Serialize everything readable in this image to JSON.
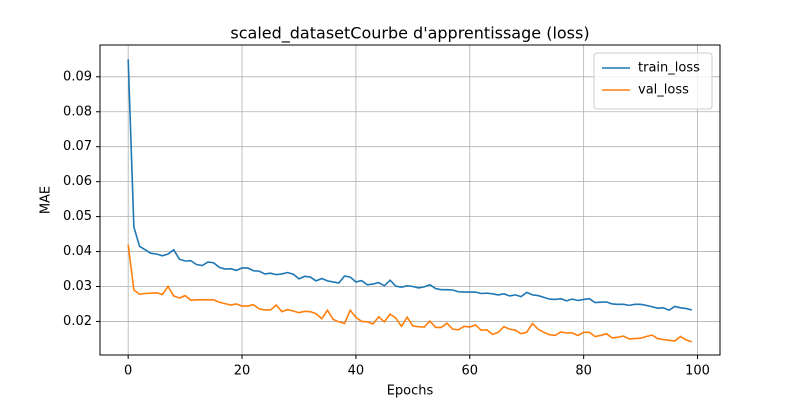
{
  "chart_data": {
    "type": "line",
    "title": "scaled_datasetCourbe d'apprentissage (loss)",
    "x_label": "Epochs",
    "y_label": "MAE",
    "x": [
      0,
      1,
      2,
      3,
      4,
      5,
      6,
      7,
      8,
      9,
      10,
      11,
      12,
      13,
      14,
      15,
      16,
      17,
      18,
      19,
      20,
      21,
      22,
      23,
      24,
      25,
      26,
      27,
      28,
      29,
      30,
      31,
      32,
      33,
      34,
      35,
      36,
      37,
      38,
      39,
      40,
      41,
      42,
      43,
      44,
      45,
      46,
      47,
      48,
      49,
      50,
      51,
      52,
      53,
      54,
      55,
      56,
      57,
      58,
      59,
      60,
      61,
      62,
      63,
      64,
      65,
      66,
      67,
      68,
      69,
      70,
      71,
      72,
      73,
      74,
      75,
      76,
      77,
      78,
      79,
      80,
      81,
      82,
      83,
      84,
      85,
      86,
      87,
      88,
      89,
      90,
      91,
      92,
      93,
      94,
      95,
      96,
      97,
      98,
      99
    ],
    "series": [
      {
        "name": "train_loss",
        "color": "#1f77b4",
        "values": [
          0.095,
          0.047,
          0.0415,
          0.0405,
          0.0395,
          0.0393,
          0.0388,
          0.0393,
          0.0405,
          0.0378,
          0.0373,
          0.0374,
          0.0363,
          0.036,
          0.037,
          0.0368,
          0.0355,
          0.035,
          0.0351,
          0.0346,
          0.0353,
          0.0353,
          0.0345,
          0.0344,
          0.0336,
          0.0338,
          0.0334,
          0.0336,
          0.034,
          0.0335,
          0.0322,
          0.0329,
          0.0327,
          0.0316,
          0.0323,
          0.0316,
          0.0313,
          0.031,
          0.033,
          0.0327,
          0.0313,
          0.0317,
          0.0305,
          0.0307,
          0.0311,
          0.0302,
          0.0318,
          0.0301,
          0.0298,
          0.0302,
          0.03,
          0.0296,
          0.0299,
          0.0305,
          0.0294,
          0.0291,
          0.0291,
          0.029,
          0.0285,
          0.0284,
          0.0284,
          0.0284,
          0.028,
          0.0281,
          0.0279,
          0.0276,
          0.0279,
          0.0273,
          0.0276,
          0.0271,
          0.0283,
          0.0276,
          0.0274,
          0.0269,
          0.0264,
          0.0263,
          0.0265,
          0.0259,
          0.0264,
          0.026,
          0.0263,
          0.0265,
          0.0254,
          0.0255,
          0.0256,
          0.025,
          0.0249,
          0.0249,
          0.0246,
          0.0249,
          0.0249,
          0.0246,
          0.0242,
          0.0238,
          0.0239,
          0.0232,
          0.0243,
          0.0239,
          0.0237,
          0.0233
        ]
      },
      {
        "name": "val_loss",
        "color": "#ff7f0e",
        "values": [
          0.042,
          0.029,
          0.0278,
          0.028,
          0.0281,
          0.0282,
          0.0277,
          0.03,
          0.0273,
          0.0267,
          0.0274,
          0.0261,
          0.0262,
          0.0262,
          0.0262,
          0.0262,
          0.0255,
          0.0251,
          0.0247,
          0.025,
          0.0244,
          0.0244,
          0.0248,
          0.0236,
          0.0233,
          0.0233,
          0.0247,
          0.0228,
          0.0234,
          0.023,
          0.0225,
          0.0229,
          0.0228,
          0.0222,
          0.0208,
          0.0232,
          0.0206,
          0.0199,
          0.0194,
          0.0232,
          0.0212,
          0.02,
          0.0199,
          0.0193,
          0.0213,
          0.0199,
          0.0221,
          0.021,
          0.0186,
          0.0212,
          0.0187,
          0.0185,
          0.0184,
          0.0201,
          0.0183,
          0.0183,
          0.0195,
          0.0178,
          0.0176,
          0.0186,
          0.0184,
          0.019,
          0.0175,
          0.0176,
          0.0163,
          0.0169,
          0.0185,
          0.0178,
          0.0175,
          0.0165,
          0.0169,
          0.0194,
          0.0178,
          0.0169,
          0.0162,
          0.016,
          0.017,
          0.0167,
          0.0167,
          0.016,
          0.0169,
          0.0169,
          0.0157,
          0.016,
          0.0165,
          0.0153,
          0.0155,
          0.0158,
          0.015,
          0.0151,
          0.0152,
          0.0157,
          0.0161,
          0.0151,
          0.0148,
          0.0146,
          0.0144,
          0.0157,
          0.0147,
          0.0142
        ]
      }
    ],
    "xlim": [
      -4.95,
      103.95
    ],
    "ylim": [
      0.0104,
      0.0991
    ],
    "xticks": [
      0,
      20,
      40,
      60,
      80,
      100
    ],
    "yticks": [
      0.02,
      0.03,
      0.04,
      0.05,
      0.06,
      0.07,
      0.08,
      0.09
    ],
    "grid": true,
    "legend": "upper-right"
  }
}
